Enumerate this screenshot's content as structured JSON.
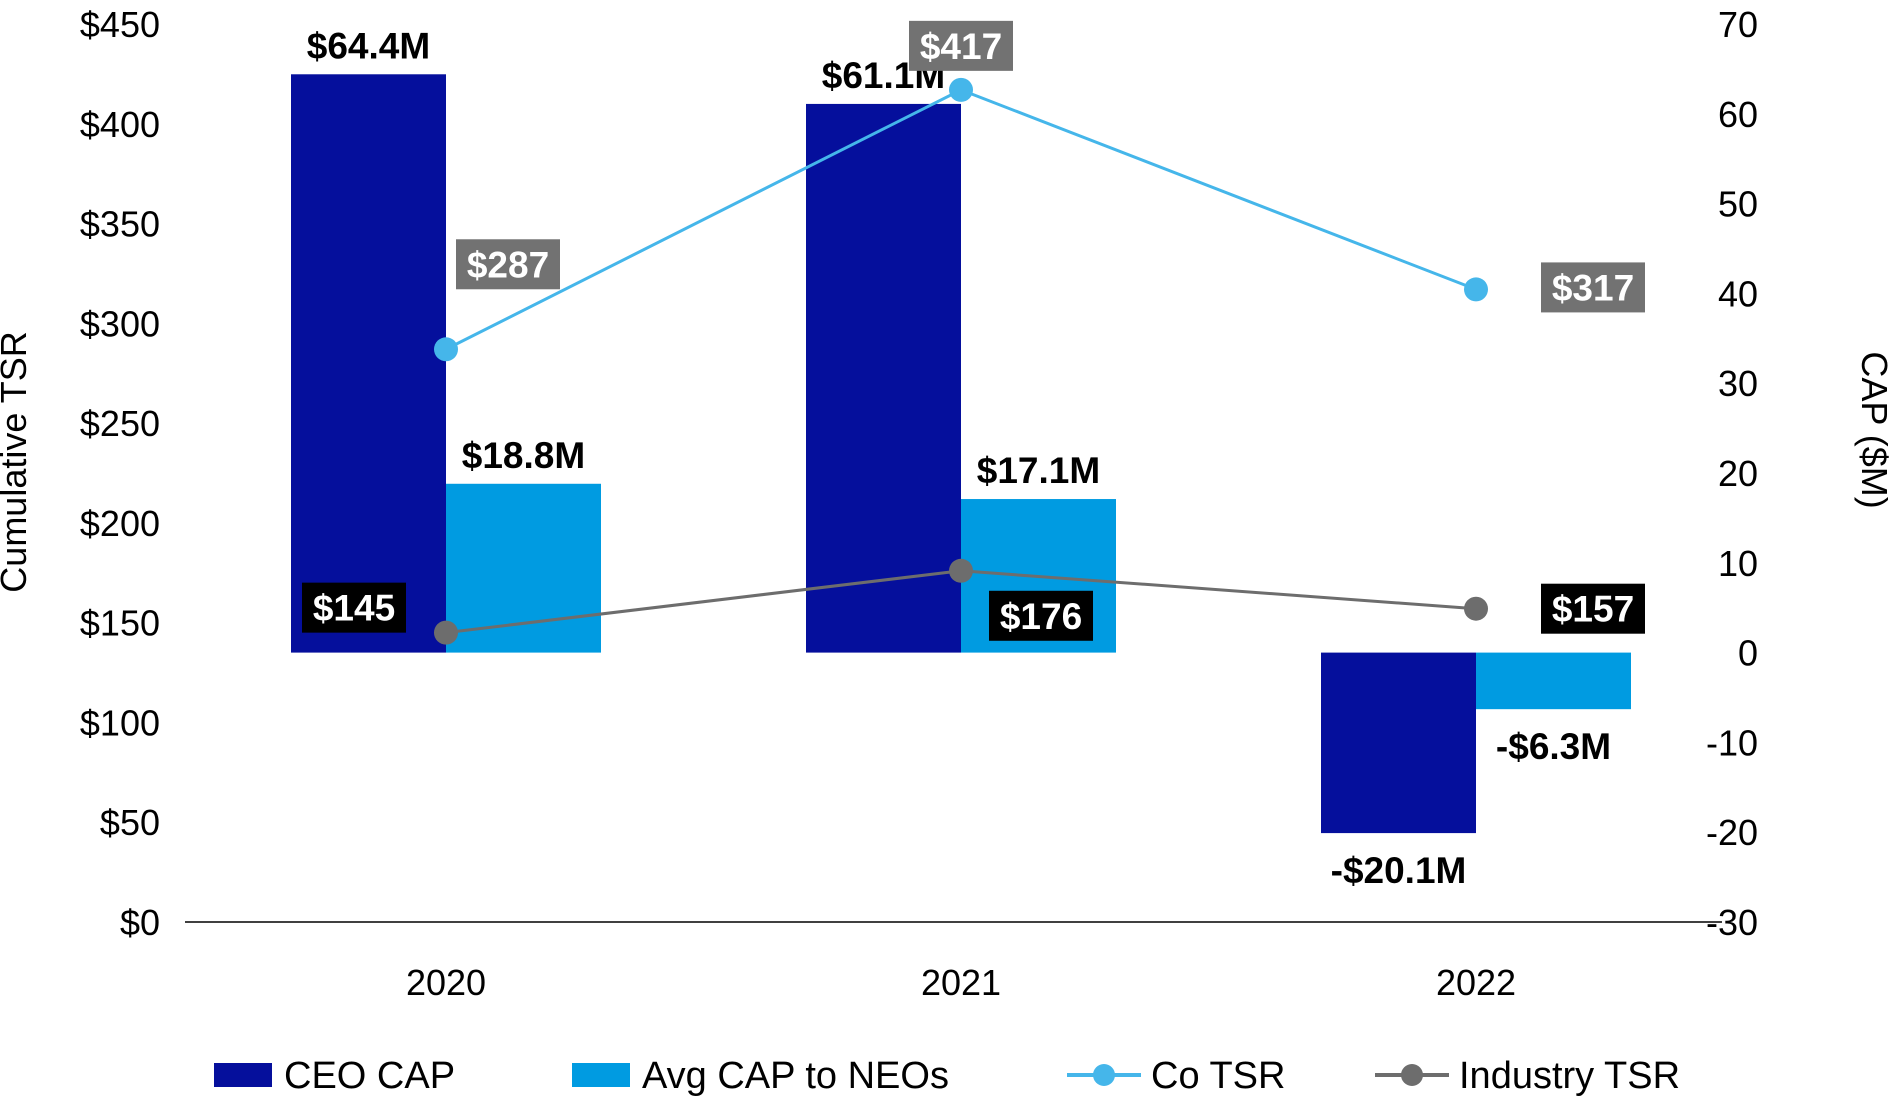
{
  "chart_data": {
    "type": "bar",
    "categories": [
      "2020",
      "2021",
      "2022"
    ],
    "bar_series": [
      {
        "name": "CEO CAP",
        "color": "#050f9c",
        "values": [
          64.4,
          61.1,
          -20.1
        ],
        "labels": [
          "$64.4M",
          "$61.1M",
          "-$20.1M"
        ]
      },
      {
        "name": "Avg CAP to NEOs",
        "color": "#009be1",
        "values": [
          18.8,
          17.1,
          -6.3
        ],
        "labels": [
          "$18.8M",
          "$17.1M",
          "-$6.3M"
        ]
      }
    ],
    "line_series": [
      {
        "name": "Co TSR",
        "color": "#45b6ea",
        "label_bg": "#727272",
        "values": [
          287,
          417,
          317
        ],
        "labels": [
          "$287",
          "$417",
          "$317"
        ]
      },
      {
        "name": "Industry TSR",
        "color": "#6d6d6d",
        "label_bg": "#000000",
        "values": [
          145,
          176,
          157
        ],
        "labels": [
          "$145",
          "$176",
          "$157"
        ]
      }
    ],
    "y_left": {
      "label": "Cumulative TSR",
      "min": 0,
      "max": 450,
      "step": 50,
      "ticks": [
        "$0",
        "$50",
        "$100",
        "$150",
        "$200",
        "$250",
        "$300",
        "$350",
        "$400",
        "$450"
      ]
    },
    "y_right": {
      "label": "CAP ($M)",
      "min": -30,
      "max": 70,
      "step": 10,
      "ticks": [
        "-30",
        "-20",
        "-10",
        "0",
        "10",
        "20",
        "30",
        "40",
        "50",
        "60",
        "70"
      ]
    },
    "legend": [
      "CEO CAP",
      "Avg CAP to NEOs",
      "Co TSR",
      "Industry TSR"
    ],
    "legend_position": "bottom",
    "grid": false
  }
}
